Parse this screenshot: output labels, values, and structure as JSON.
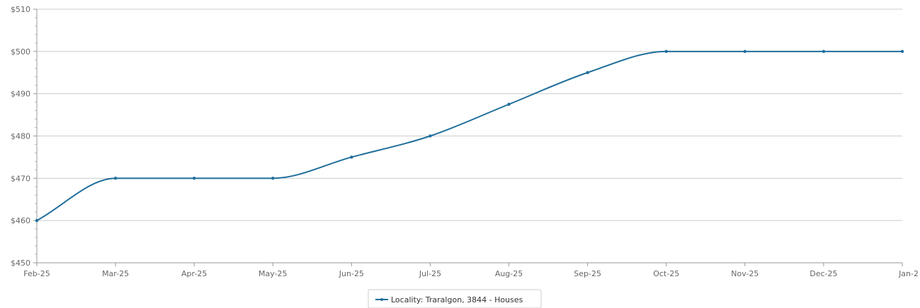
{
  "chart_data": {
    "type": "line",
    "title": "",
    "xlabel": "",
    "ylabel": "",
    "categories": [
      "Feb-25",
      "Mar-25",
      "Apr-25",
      "May-25",
      "Jun-25",
      "Jul-25",
      "Aug-25",
      "Sep-25",
      "Oct-25",
      "Nov-25",
      "Dec-25",
      "Jan-2"
    ],
    "series": [
      {
        "name": "Locality: Traralgon, 3844 - Houses",
        "values": [
          460,
          470,
          470,
          470,
          475,
          480,
          487.5,
          495,
          500,
          500,
          500,
          500
        ],
        "color": "#1f6e9c"
      }
    ],
    "ylim": [
      450,
      510
    ],
    "yticks": [
      450,
      460,
      470,
      480,
      490,
      500,
      510
    ],
    "ytick_labels": [
      "$450",
      "$460",
      "$470",
      "$480",
      "$490",
      "$500",
      "$510"
    ],
    "grid": true,
    "grid_color": "#cccccc",
    "axis_color": "#999999",
    "legend_position": "bottom-center"
  }
}
